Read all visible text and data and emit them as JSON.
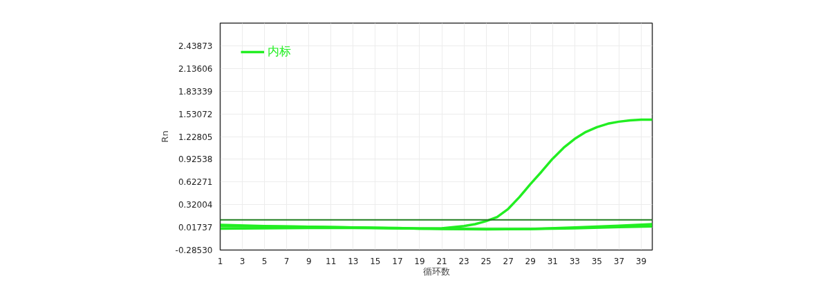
{
  "chart_data": {
    "type": "line",
    "xlabel": "循环数",
    "ylabel": "Rn",
    "xlim": [
      1,
      40
    ],
    "xticks": [
      1,
      3,
      5,
      7,
      9,
      11,
      13,
      15,
      17,
      19,
      21,
      23,
      25,
      27,
      29,
      31,
      33,
      35,
      37,
      39
    ],
    "ylim": [
      -0.2853,
      2.7414
    ],
    "yticks": [
      {
        "value": -0.2853,
        "label": "-0.28530"
      },
      0.01737,
      0.32004,
      0.62271,
      0.92538,
      1.22805,
      1.53072,
      1.83339,
      2.13606,
      2.43873
    ],
    "grid": true,
    "legend": "top left",
    "line_style": "solid",
    "marker": "none",
    "ref_lines": [
      {
        "axis": "y",
        "value": 0.118,
        "color": "#1e7b1e"
      }
    ],
    "series": [
      {
        "name": "内标",
        "color": "#22ee22",
        "x": [
          1,
          5,
          9,
          13,
          17,
          19,
          21,
          23,
          24,
          25,
          26,
          27,
          28,
          29,
          30,
          31,
          32,
          33,
          34,
          35,
          36,
          37,
          38,
          39,
          40
        ],
        "values": [
          0.035,
          0.03,
          0.025,
          0.017,
          0.008,
          0.0,
          0.005,
          0.035,
          0.06,
          0.1,
          0.155,
          0.264,
          0.42,
          0.594,
          0.759,
          0.932,
          1.079,
          1.198,
          1.29,
          1.353,
          1.4,
          1.427,
          1.445,
          1.454,
          1.454
        ]
      },
      {
        "color": "#22ee22",
        "x": [
          1,
          5,
          9,
          13,
          17,
          21,
          25,
          29,
          33,
          37,
          40
        ],
        "values": [
          0.05,
          0.035,
          0.025,
          0.015,
          0.005,
          -0.005,
          -0.01,
          -0.005,
          0.015,
          0.04,
          0.06
        ]
      },
      {
        "color": "#22ee22",
        "x": [
          1,
          5,
          9,
          13,
          17,
          21,
          25,
          29,
          33,
          37,
          40
        ],
        "values": [
          0.0,
          0.005,
          0.01,
          0.01,
          0.005,
          0.0,
          -0.005,
          -0.005,
          0.005,
          0.02,
          0.03
        ]
      }
    ]
  }
}
